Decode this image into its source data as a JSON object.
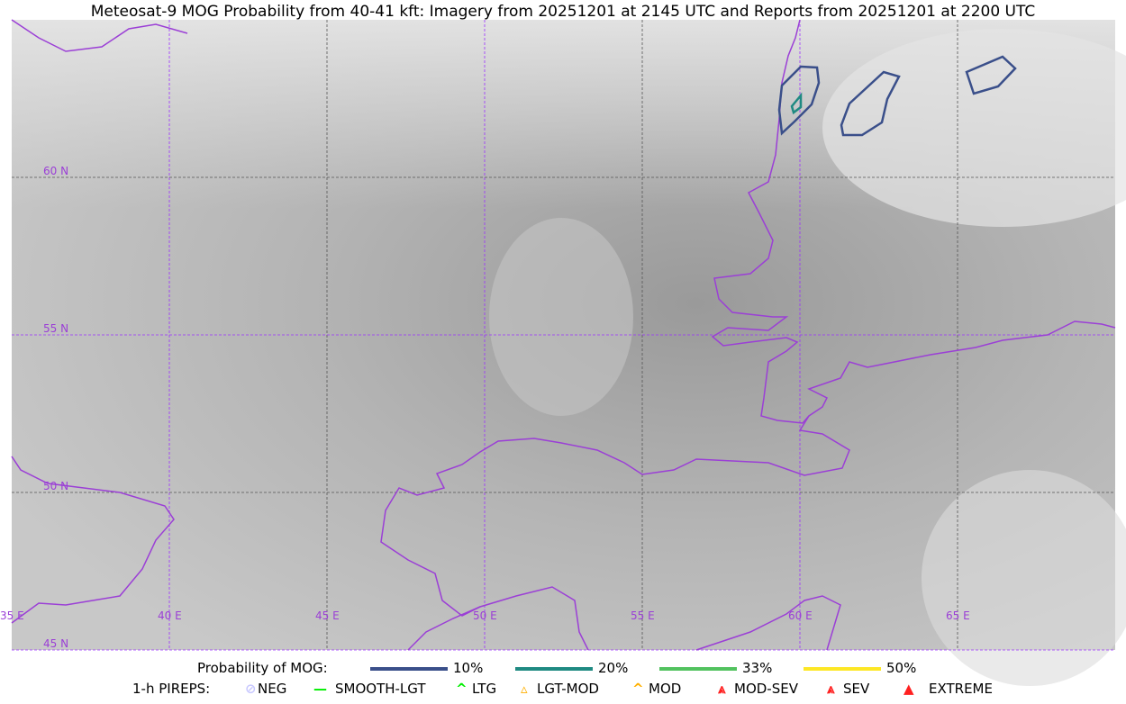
{
  "title": "Meteosat-9 MOG Probability from 40-41 kft: Imagery from 20251201 at 2145 UTC and Reports from 20251201 at 2200 UTC",
  "map": {
    "lon_labels": [
      "35 E",
      "40 E",
      "45 E",
      "50 E",
      "55 E",
      "60 E",
      "65 E"
    ],
    "lat_labels": [
      "60 N",
      "55 N",
      "50 N",
      "45 N"
    ],
    "grid_color": "#9b30ff",
    "coast_color": "#9b3fd6"
  },
  "legend": {
    "prob_title": "Probability of MOG:",
    "prob_items": [
      {
        "label": "10%",
        "color": "#3a4f8a"
      },
      {
        "label": "20%",
        "color": "#1f8a82"
      },
      {
        "label": "33%",
        "color": "#52c25f"
      },
      {
        "label": "50%",
        "color": "#fde725"
      }
    ],
    "pirep_title": "1-h PIREPS:",
    "pirep_items": [
      {
        "label": "NEG",
        "color": "#c8c8ff"
      },
      {
        "label": "SMOOTH-LGT",
        "color": "#00ee00"
      },
      {
        "label": "LTG",
        "color": "#00ee00"
      },
      {
        "label": "LGT-MOD",
        "color": "#ffb000"
      },
      {
        "label": "MOD",
        "color": "#ffb000"
      },
      {
        "label": "MOD-SEV",
        "color": "#ff2020"
      },
      {
        "label": "SEV",
        "color": "#ff2020"
      },
      {
        "label": "EXTREME",
        "color": "#ff2020"
      }
    ]
  }
}
